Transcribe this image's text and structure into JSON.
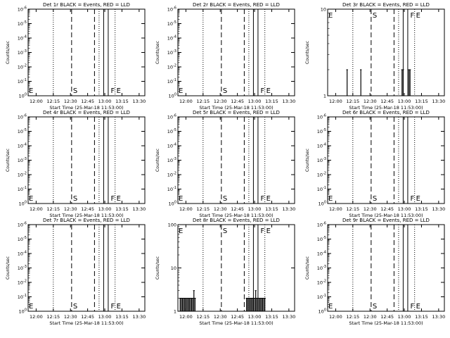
{
  "x_ticks": [
    "12:00",
    "12:15",
    "12:30",
    "12:45",
    "13:00",
    "13:15",
    "13:30"
  ],
  "xlabel": "Start Time (25-Mar-18 11:53:00)",
  "ylabel": "Counts/sec",
  "markers": [
    {
      "label": "E",
      "t": "11:53"
    },
    {
      "label": "S",
      "t": "12:31"
    },
    {
      "label": "F",
      "t": "13:04"
    },
    {
      "label": "E",
      "t": "13:09"
    }
  ],
  "vlines": [
    {
      "t": "12:15",
      "style": "dotted"
    },
    {
      "t": "12:31",
      "style": "dashed"
    },
    {
      "t": "12:51",
      "style": "dashed"
    },
    {
      "t": "12:55",
      "style": "dotted"
    },
    {
      "t": "12:59",
      "style": "solid"
    },
    {
      "t": "13:03",
      "style": "solid"
    },
    {
      "t": "13:09",
      "style": "dotted"
    }
  ],
  "chart_data": [
    {
      "type": "bar",
      "title": "Det 1r BLACK = Events, RED = LLD",
      "y_scale": "log",
      "y_ticks": [
        "10^0",
        "10^-1",
        "10^-2",
        "10^-3",
        "10^-4",
        "10^-5",
        "10^-6"
      ],
      "series": []
    },
    {
      "type": "bar",
      "title": "Det 2r BLACK = Events, RED = LLD",
      "y_scale": "log",
      "y_ticks": [
        "10^0",
        "10^-1",
        "10^-2",
        "10^-3",
        "10^-4",
        "10^-5",
        "10^-6"
      ],
      "series": []
    },
    {
      "type": "bar",
      "title": "Det 3r BLACK = Events, RED = LLD",
      "y_scale": "log",
      "y_ticks": [
        "1",
        "10"
      ],
      "series": [
        {
          "values": [
            {
              "t": "12:10",
              "v": 2
            },
            {
              "t": "12:22",
              "v": 2
            },
            {
              "t": "12:58",
              "v": 2
            },
            {
              "t": "12:59",
              "v": 2
            },
            {
              "t": "13:04",
              "v": 2
            },
            {
              "t": "13:05",
              "v": 2
            }
          ]
        }
      ]
    },
    {
      "type": "bar",
      "title": "Det 4r BLACK = Events, RED = LLD",
      "y_scale": "log",
      "y_ticks": [
        "10^0",
        "10^-1",
        "10^-2",
        "10^-3",
        "10^-4",
        "10^-5",
        "10^-6"
      ],
      "series": []
    },
    {
      "type": "bar",
      "title": "Det 5r BLACK = Events, RED = LLD",
      "y_scale": "log",
      "y_ticks": [
        "10^0",
        "10^-1",
        "10^-2",
        "10^-3",
        "10^-4",
        "10^-5",
        "10^-6"
      ],
      "series": []
    },
    {
      "type": "bar",
      "title": "Det 6r BLACK = Events, RED = LLD",
      "y_scale": "log",
      "y_ticks": [
        "10^0",
        "10^-1",
        "10^-2",
        "10^-3",
        "10^-4",
        "10^-5",
        "10^-6"
      ],
      "series": []
    },
    {
      "type": "bar",
      "title": "Det 7r BLACK = Events, RED = LLD",
      "y_scale": "log",
      "y_ticks": [
        "10^0",
        "10^-1",
        "10^-2",
        "10^-3",
        "10^-4",
        "10^-5",
        "10^-6"
      ],
      "series": []
    },
    {
      "type": "bar",
      "title": "Det 8r BLACK = Events, RED = LLD",
      "y_scale": "log",
      "y_ticks": [
        "1",
        "10",
        "100"
      ],
      "series": [
        {
          "values": [
            {
              "t": "11:55",
              "v": 2
            },
            {
              "t": "11:56",
              "v": 2
            },
            {
              "t": "11:57",
              "v": 2
            },
            {
              "t": "11:58",
              "v": 2
            },
            {
              "t": "11:59",
              "v": 2
            },
            {
              "t": "12:00",
              "v": 2
            },
            {
              "t": "12:01",
              "v": 2
            },
            {
              "t": "12:02",
              "v": 2
            },
            {
              "t": "12:03",
              "v": 2
            },
            {
              "t": "12:04",
              "v": 2
            },
            {
              "t": "12:05",
              "v": 2
            },
            {
              "t": "12:06",
              "v": 2
            },
            {
              "t": "12:07",
              "v": 3
            },
            {
              "t": "12:08",
              "v": 2
            },
            {
              "t": "12:53",
              "v": 2
            },
            {
              "t": "12:54",
              "v": 2
            },
            {
              "t": "12:55",
              "v": 2
            },
            {
              "t": "12:56",
              "v": 2
            },
            {
              "t": "12:57",
              "v": 2
            },
            {
              "t": "12:58",
              "v": 2
            },
            {
              "t": "12:59",
              "v": 2
            },
            {
              "t": "13:00",
              "v": 2
            },
            {
              "t": "13:01",
              "v": 3
            },
            {
              "t": "13:02",
              "v": 2
            },
            {
              "t": "13:03",
              "v": 2
            },
            {
              "t": "13:04",
              "v": 2
            },
            {
              "t": "13:05",
              "v": 2
            },
            {
              "t": "13:06",
              "v": 2
            },
            {
              "t": "13:07",
              "v": 2
            },
            {
              "t": "13:08",
              "v": 2
            },
            {
              "t": "13:09",
              "v": 2
            }
          ]
        }
      ]
    },
    {
      "type": "bar",
      "title": "Det 9r BLACK = Events, RED = LLD",
      "y_scale": "log",
      "y_ticks": [
        "10^0",
        "10^-1",
        "10^-2",
        "10^-3",
        "10^-4",
        "10^-5",
        "10^-6"
      ],
      "series": []
    }
  ]
}
